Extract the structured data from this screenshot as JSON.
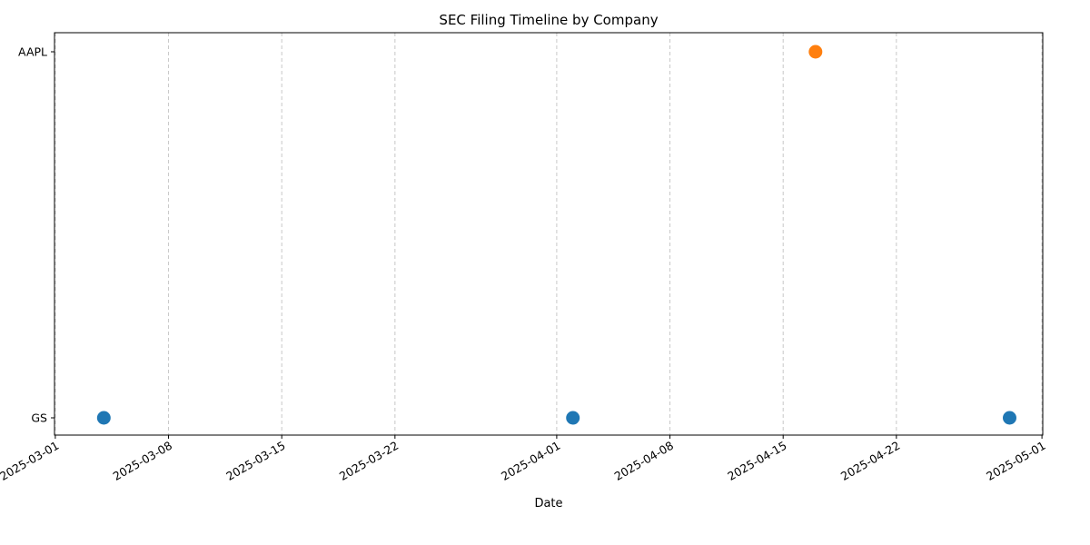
{
  "chart_data": {
    "type": "scatter",
    "title": "SEC Filing Timeline by Company",
    "xlabel": "Date",
    "ylabel": "",
    "x_type": "date",
    "x_range": [
      "2025-03-01",
      "2025-05-01"
    ],
    "x_ticks": [
      "2025-03-01",
      "2025-03-08",
      "2025-03-15",
      "2025-03-22",
      "2025-04-01",
      "2025-04-08",
      "2025-04-15",
      "2025-04-22",
      "2025-05-01"
    ],
    "categories": [
      "GS",
      "AAPL"
    ],
    "grid": "vertical dashed",
    "points": [
      {
        "x": "2025-03-04",
        "y": "GS",
        "color": "#1f77b4"
      },
      {
        "x": "2025-04-02",
        "y": "GS",
        "color": "#1f77b4"
      },
      {
        "x": "2025-04-17",
        "y": "AAPL",
        "color": "#ff7f0e"
      },
      {
        "x": "2025-04-29",
        "y": "GS",
        "color": "#1f77b4"
      }
    ]
  }
}
